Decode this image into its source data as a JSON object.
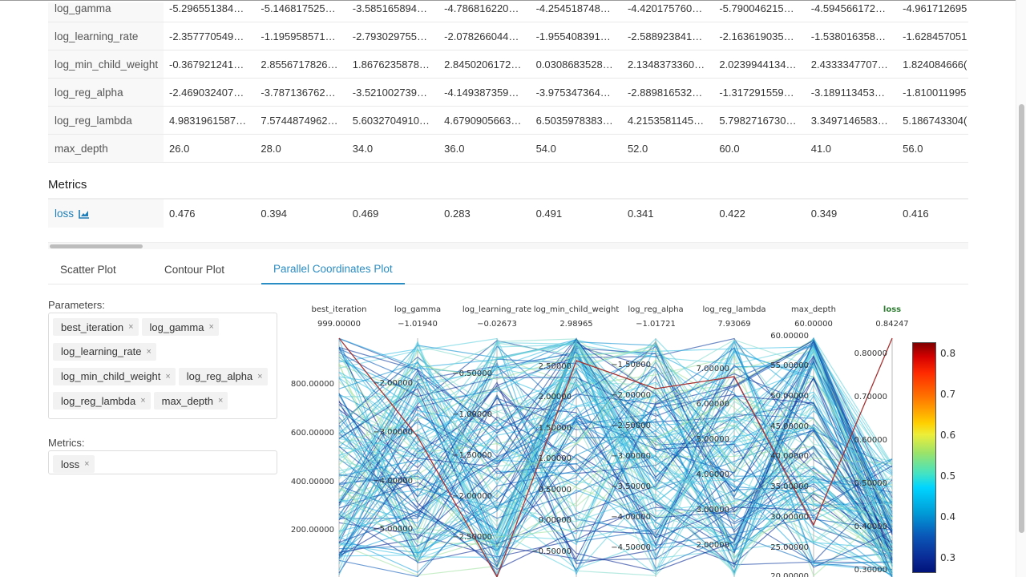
{
  "parameters_table": {
    "rows": [
      {
        "name": "log_gamma",
        "values": [
          "-5.296551384…",
          "-5.146817525…",
          "-3.585165894…",
          "-4.786816220…",
          "-4.254518748…",
          "-4.420175760…",
          "-5.790046215…",
          "-4.594566172…",
          "-4.961712695"
        ]
      },
      {
        "name": "log_learning_rate",
        "values": [
          "-2.357770549…",
          "-1.195958571…",
          "-2.793029755…",
          "-2.078266044…",
          "-1.955408391…",
          "-2.588923841…",
          "-2.163619035…",
          "-1.538016358…",
          "-1.628457051"
        ]
      },
      {
        "name": "log_min_child_weight",
        "values": [
          "-0.367921241…",
          "2.8556717826…",
          "1.8676235878…",
          "2.8450206172…",
          "0.0308683528…",
          "2.1348373360…",
          "2.0239944134…",
          "2.4333347707…",
          "1.824084666("
        ]
      },
      {
        "name": "log_reg_alpha",
        "values": [
          "-2.469032407…",
          "-3.787136762…",
          "-3.521002739…",
          "-4.149387359…",
          "-3.975347364…",
          "-2.889816532…",
          "-1.317291559…",
          "-3.189113453…",
          "-1.810011995"
        ]
      },
      {
        "name": "log_reg_lambda",
        "values": [
          "4.9831961587…",
          "7.5744874962…",
          "5.6032704910…",
          "4.6790905663…",
          "6.5035978383…",
          "4.2153581145…",
          "5.7982716730…",
          "3.3497146583…",
          "5.186743304("
        ]
      },
      {
        "name": "max_depth",
        "values": [
          "26.0",
          "28.0",
          "34.0",
          "36.0",
          "54.0",
          "52.0",
          "60.0",
          "41.0",
          "56.0"
        ]
      }
    ]
  },
  "metrics_section": {
    "title": "Metrics",
    "rows": [
      {
        "name": "loss",
        "icon": "line-chart-icon",
        "values": [
          "0.476",
          "0.394",
          "0.469",
          "0.283",
          "0.491",
          "0.341",
          "0.422",
          "0.349",
          "0.416"
        ]
      }
    ]
  },
  "tabs": [
    {
      "label": "Scatter Plot",
      "active": false
    },
    {
      "label": "Contour Plot",
      "active": false
    },
    {
      "label": "Parallel Coordinates Plot",
      "active": true
    }
  ],
  "selectors": {
    "parameters_label": "Parameters:",
    "parameters": [
      "best_iteration",
      "log_gamma",
      "log_learning_rate",
      "log_min_child_weight",
      "log_reg_alpha",
      "log_reg_lambda",
      "max_depth"
    ],
    "metrics_label": "Metrics:",
    "metrics": [
      "loss"
    ],
    "remove_glyph": "×"
  },
  "colors": {
    "accent": "#2a8dc4",
    "link": "#1f7fb8",
    "loss_axis_label": "#2e7d32"
  },
  "chart_data": {
    "type": "parallel_coordinates",
    "title": "",
    "axes": [
      {
        "name": "best_iteration",
        "max_label": "999.00000",
        "ticks": [
          "800.00000",
          "600.00000",
          "400.00000",
          "200.00000"
        ]
      },
      {
        "name": "log_gamma",
        "max_label": "−1.01940",
        "ticks": [
          "−2.00000",
          "−3.00000",
          "−4.00000",
          "−5.00000"
        ]
      },
      {
        "name": "log_learning_rate",
        "max_label": "−0.02673",
        "ticks": [
          "−0.50000",
          "−1.00000",
          "−1.50000",
          "−2.00000",
          "−2.50000"
        ]
      },
      {
        "name": "log_min_child_weight",
        "max_label": "2.98965",
        "ticks": [
          "2.50000",
          "2.00000",
          "1.50000",
          "1.00000",
          "0.50000",
          "0.00000",
          "−0.50000"
        ]
      },
      {
        "name": "log_reg_alpha",
        "max_label": "−1.01721",
        "ticks": [
          "−1.50000",
          "−2.00000",
          "−2.50000",
          "−3.00000",
          "−3.50000",
          "−4.00000",
          "−4.50000"
        ]
      },
      {
        "name": "log_reg_lambda",
        "max_label": "7.93069",
        "ticks": [
          "7.00000",
          "6.00000",
          "5.00000",
          "4.00000",
          "3.00000",
          "2.00000"
        ]
      },
      {
        "name": "max_depth",
        "max_label": "60.00000",
        "ticks": [
          "60.00000",
          "55.00000",
          "50.00000",
          "45.00000",
          "40.00000",
          "35.00000",
          "30.00000",
          "25.00000",
          "20.00000"
        ]
      },
      {
        "name": "loss",
        "max_label": "0.84247",
        "ticks": [
          "0.80000",
          "0.70000",
          "0.60000",
          "0.50000",
          "0.40000",
          "0.30000"
        ]
      }
    ],
    "colorbar": {
      "metric": "loss",
      "colormap": "jet",
      "ticks": [
        "0.8",
        "0.7",
        "0.6",
        "0.5",
        "0.4",
        "0.3"
      ],
      "range": [
        0.28,
        0.84
      ]
    },
    "legend": "none",
    "grid": false
  }
}
